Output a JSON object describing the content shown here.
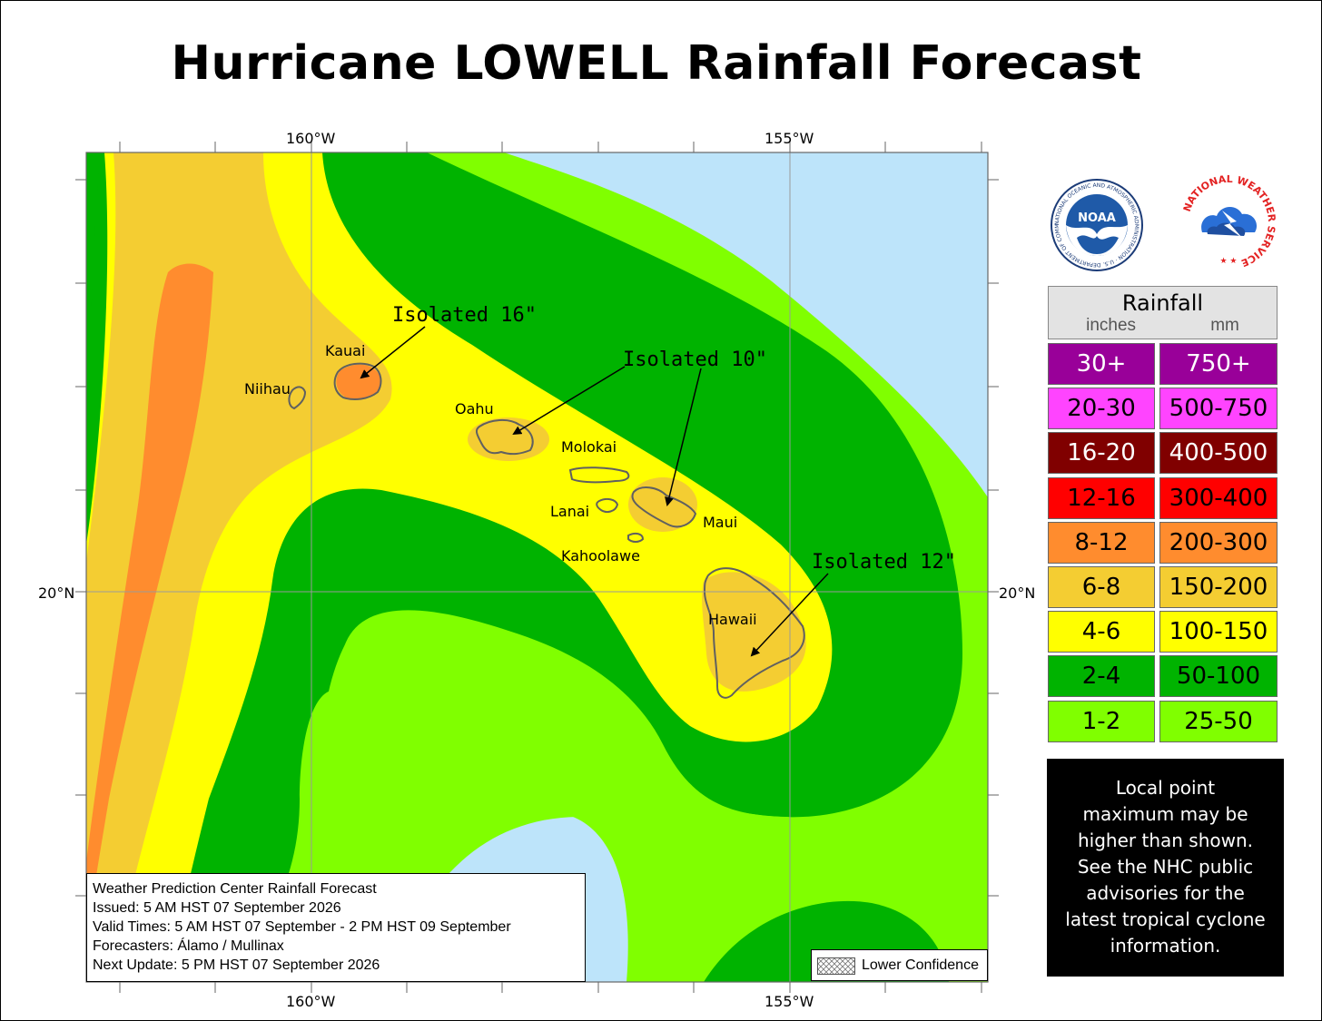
{
  "title": "Hurricane LOWELL Rainfall Forecast",
  "axes": {
    "lon_top": [
      "160°W",
      "155°W"
    ],
    "lon_bottom": [
      "160°W",
      "155°W"
    ],
    "lat_left": "20°N",
    "lat_right": "20°N"
  },
  "islands": {
    "niihau": "Niihau",
    "kauai": "Kauai",
    "oahu": "Oahu",
    "molokai": "Molokai",
    "lanai": "Lanai",
    "maui": "Maui",
    "kahoolawe": "Kahoolawe",
    "hawaii": "Hawaii"
  },
  "annotations": {
    "kauai": "Isolated 16\"",
    "oahu_maui": "Isolated 10\"",
    "hawaii": "Isolated 12\""
  },
  "logos": {
    "noaa": "NOAA",
    "noaa_ring": "NATIONAL OCEANIC AND ATMOSPHERIC ADMINISTRATION · U.S. DEPARTMENT OF COMMERCE",
    "nws_ring": "NATIONAL WEATHER SERVICE"
  },
  "legend": {
    "title": "Rainfall",
    "units_in": "inches",
    "units_mm": "mm",
    "rows": [
      {
        "in": "30+",
        "mm": "750+",
        "color": "#990099",
        "text_color": "#ffffff"
      },
      {
        "in": "20-30",
        "mm": "500-750",
        "color": "#ff44ff",
        "text_color": "#000000"
      },
      {
        "in": "16-20",
        "mm": "400-500",
        "color": "#800000",
        "text_color": "#ffffff"
      },
      {
        "in": "12-16",
        "mm": "300-400",
        "color": "#ff0000",
        "text_color": "#000000"
      },
      {
        "in": "8-12",
        "mm": "200-300",
        "color": "#ff8c2e",
        "text_color": "#000000"
      },
      {
        "in": "6-8",
        "mm": "150-200",
        "color": "#f4cd32",
        "text_color": "#000000"
      },
      {
        "in": "4-6",
        "mm": "100-150",
        "color": "#ffff00",
        "text_color": "#000000"
      },
      {
        "in": "2-4",
        "mm": "50-100",
        "color": "#00b300",
        "text_color": "#000000"
      },
      {
        "in": "1-2",
        "mm": "25-50",
        "color": "#80ff00",
        "text_color": "#000000"
      }
    ]
  },
  "note": [
    "Local point",
    "maximum may be",
    "higher than shown.",
    "See the NHC public",
    "advisories for the",
    "latest tropical cyclone",
    "information."
  ],
  "info": {
    "line1": "Weather Prediction Center Rainfall Forecast",
    "line2": "Issued: 5 AM HST 07 September 2026",
    "line3": "Valid Times: 5 AM HST 07 September - 2 PM HST 09 September",
    "line4": "Forecasters: Álamo / Mullinax",
    "line5": "Next Update: 5 PM HST 07 September 2026"
  },
  "lower_confidence": "Lower Confidence",
  "colors": {
    "ocean_clear": "#bde4fa",
    "c1_2": "#80ff00",
    "c2_4": "#00b300",
    "c4_6": "#ffff00",
    "c6_8": "#f4cd32",
    "c8_12": "#ff8c2e",
    "island_outline": "#606060"
  }
}
